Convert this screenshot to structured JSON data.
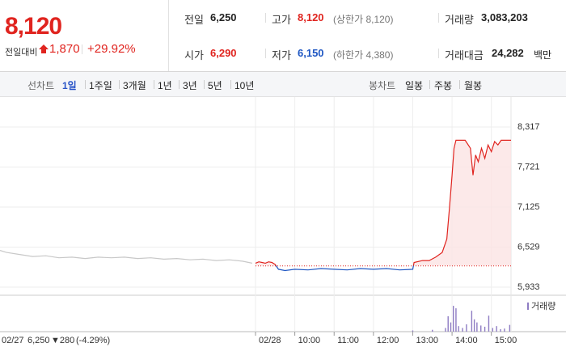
{
  "header": {
    "price": "8,120",
    "change_label": "전일대비",
    "change": "1,870",
    "change_pct": "+29.92%"
  },
  "info": [
    {
      "label": "전일",
      "value": "6,250",
      "color": "#222222"
    },
    {
      "label": "고가",
      "value": "8,120",
      "note": "(상한가 8,120)",
      "color": "#e0241f"
    },
    {
      "label": "거래량",
      "value": "3,083,203",
      "color": "#222222"
    },
    {
      "label": "시가",
      "value": "6,290",
      "color": "#e0241f"
    },
    {
      "label": "저가",
      "value": "6,150",
      "note": "(하한가 4,380)",
      "color": "#1f57c3"
    },
    {
      "label": "거래대금",
      "value": "24,282",
      "note": "백만",
      "color": "#222222"
    }
  ],
  "tabs": {
    "line_label": "선차트",
    "line_items": [
      "1일",
      "1주일",
      "3개월",
      "1년",
      "3년",
      "5년",
      "10년"
    ],
    "active": 0,
    "candle_label": "봉차트",
    "candle_items": [
      "일봉",
      "주봉",
      "월봉"
    ]
  },
  "chart_data": {
    "type": "line",
    "xlim": [
      -390,
      390
    ],
    "ylim": [
      5813,
      8582
    ],
    "xticks": [
      {
        "value": 0,
        "label": "02/28"
      },
      {
        "value": 60,
        "label": "10:00"
      },
      {
        "value": 120,
        "label": "11:00"
      },
      {
        "value": 180,
        "label": "12:00"
      },
      {
        "value": 240,
        "label": "13:00"
      },
      {
        "value": 300,
        "label": "14:00"
      },
      {
        "value": 360,
        "label": "15:00"
      }
    ],
    "yticks": [
      {
        "value": 8317,
        "label": "8,317"
      },
      {
        "value": 7721,
        "label": "7,721"
      },
      {
        "value": 7125,
        "label": "7,125"
      },
      {
        "value": 6529,
        "label": "6,529"
      },
      {
        "value": 5933,
        "label": "5,933"
      }
    ],
    "grid": true,
    "baseline": 6250,
    "up_color": "#e0241f",
    "down_color": "#1f57c3",
    "area_color": "#fbe3e3",
    "series": [
      {
        "color": "#c8c8c8",
        "x": [
          -390,
          -380,
          -360,
          -340,
          -320,
          -300,
          -280,
          -260,
          -240,
          -220,
          -200,
          -180,
          -160,
          -140,
          -120,
          -100,
          -80,
          -60,
          -40,
          -20,
          -5
        ],
        "values": [
          6480,
          6450,
          6420,
          6390,
          6400,
          6370,
          6380,
          6360,
          6380,
          6370,
          6380,
          6360,
          6370,
          6350,
          6360,
          6340,
          6350,
          6330,
          6340,
          6320,
          6290
        ]
      },
      {
        "color": "#e0241f",
        "x": [
          0,
          5,
          10,
          15,
          20,
          25,
          30,
          35,
          45,
          60,
          80,
          100,
          120,
          140,
          160,
          180,
          200,
          220,
          240,
          242,
          255,
          265,
          275,
          285,
          292,
          296,
          300,
          303,
          306,
          320,
          328,
          332,
          336,
          340,
          345,
          350,
          355,
          360,
          365,
          370,
          375,
          390
        ],
        "values": [
          6290,
          6310,
          6300,
          6290,
          6310,
          6300,
          6270,
          6200,
          6180,
          6200,
          6190,
          6210,
          6200,
          6190,
          6210,
          6200,
          6210,
          6190,
          6200,
          6300,
          6330,
          6330,
          6380,
          6450,
          6650,
          7100,
          7600,
          8000,
          8120,
          8120,
          8000,
          7600,
          7900,
          7800,
          8000,
          7850,
          8050,
          7950,
          8100,
          8050,
          8120,
          8120
        ]
      }
    ],
    "volume": {
      "name": "거래량",
      "color": "#8e7cc3",
      "ylim": [
        0,
        500000
      ],
      "x": [
        240,
        270,
        290,
        294,
        298,
        302,
        306,
        310,
        316,
        322,
        330,
        334,
        338,
        344,
        350,
        356,
        362,
        368,
        374,
        380,
        388
      ],
      "values": [
        20000,
        30000,
        60000,
        250000,
        150000,
        420000,
        380000,
        90000,
        60000,
        120000,
        340000,
        200000,
        150000,
        100000,
        80000,
        260000,
        60000,
        90000,
        40000,
        50000,
        110000
      ]
    },
    "footer": {
      "date": "02/27",
      "close": "6,250",
      "change": "▼280",
      "pct": "(-4.29%)"
    }
  }
}
